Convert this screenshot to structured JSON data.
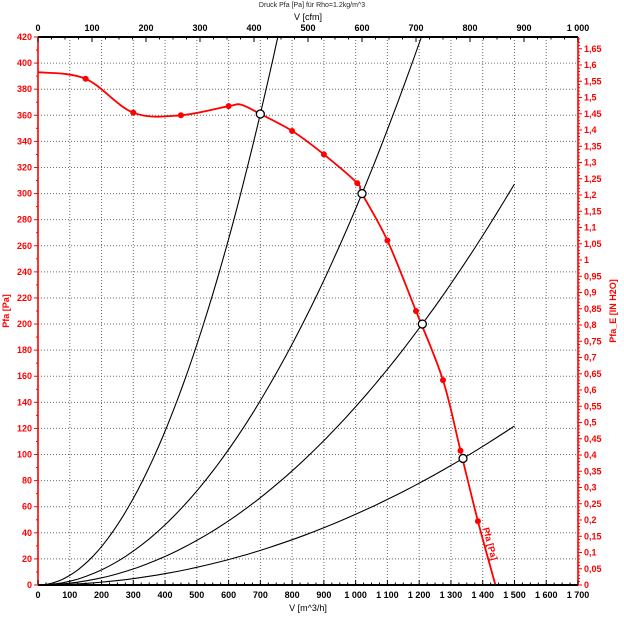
{
  "header": {
    "title": "Druck Pfa [Pa] für Rho=1.2kg/m^3"
  },
  "chart_data": {
    "type": "line",
    "title": "Druck Pfa [Pa] für Rho=1.2kg/m^3",
    "colors": {
      "curve": "#ff0000",
      "system_curve": "#000000",
      "grid": "#6b6b6b",
      "axis_black": "#000000",
      "axis_red": "#ff0000",
      "background": "#ffffff",
      "op_fill": "#ffffff"
    },
    "axes": {
      "bottom": {
        "label": "V [m^3/h]",
        "min": 0,
        "max": 1700,
        "major": 100,
        "minor": 25,
        "tick_labels": [
          "0",
          "100",
          "200",
          "300",
          "400",
          "500",
          "600",
          "700",
          "800",
          "900",
          "1 000",
          "1 100",
          "1 200",
          "1 300",
          "1 400",
          "1 500",
          "1 600",
          "1 700"
        ]
      },
      "top": {
        "label": "V [cfm]",
        "min": 0,
        "max": 1000,
        "major": 100,
        "minor": 25,
        "tick_labels": [
          "0",
          "100",
          "200",
          "300",
          "400",
          "500",
          "600",
          "700",
          "800",
          "900",
          "1 000"
        ]
      },
      "left": {
        "label": "Pfa [Pa]",
        "min": 0,
        "max": 420,
        "major": 20,
        "minor": 10,
        "tick_labels": [
          "0",
          "20",
          "40",
          "60",
          "80",
          "100",
          "120",
          "140",
          "160",
          "180",
          "200",
          "220",
          "240",
          "260",
          "280",
          "300",
          "320",
          "340",
          "360",
          "380",
          "400",
          "420"
        ]
      },
      "right": {
        "label": "Pfa_E [IN H2O]",
        "min": 0,
        "max": 1.6862,
        "major": 0.05,
        "minor": 0.01,
        "label_max": 1.65,
        "tick_labels": [
          "0",
          "0,05",
          "0,1",
          "0,15",
          "0,2",
          "0,25",
          "0,3",
          "0,35",
          "0,4",
          "0,45",
          "0,5",
          "0,55",
          "0,6",
          "0,65",
          "0,7",
          "0,75",
          "0,8",
          "0,85",
          "0,9",
          "0,95",
          "1",
          "1,05",
          "1,1",
          "1,15",
          "1,2",
          "1,25",
          "1,3",
          "1,35",
          "1,4",
          "1,45",
          "1,5",
          "1,55",
          "1,6",
          "1,65"
        ]
      }
    },
    "fan_curve": {
      "name": "Pfa [Pa]",
      "points": [
        [
          0,
          393
        ],
        [
          150,
          388
        ],
        [
          300,
          362
        ],
        [
          450,
          360
        ],
        [
          600,
          367
        ],
        [
          640,
          368
        ],
        [
          700,
          361
        ],
        [
          800,
          348
        ],
        [
          900,
          330
        ],
        [
          1005,
          308
        ],
        [
          1020,
          300
        ],
        [
          1100,
          264
        ],
        [
          1190,
          210
        ],
        [
          1275,
          157
        ],
        [
          1330,
          103
        ],
        [
          1385,
          49
        ],
        [
          1440,
          0
        ]
      ],
      "markers": [
        [
          150,
          388
        ],
        [
          300,
          362
        ],
        [
          450,
          360
        ],
        [
          600,
          367
        ],
        [
          800,
          348
        ],
        [
          900,
          330
        ],
        [
          1005,
          308
        ],
        [
          1100,
          264
        ],
        [
          1190,
          210
        ],
        [
          1275,
          157
        ],
        [
          1330,
          103
        ],
        [
          1385,
          49
        ]
      ]
    },
    "system_curves": [
      {
        "k": 0.0007367,
        "v_end": 755
      },
      {
        "k": 0.00028835,
        "v_end": 1207
      },
      {
        "k": 0.00013661,
        "v_end": 1500
      },
      {
        "k": 5.4187e-05,
        "v_end": 1500
      }
    ],
    "operating_points": [
      [
        700,
        361
      ],
      [
        1020,
        300
      ],
      [
        1210,
        200
      ],
      [
        1338,
        97
      ]
    ],
    "curve_label": {
      "text": "Pfa [Pa]",
      "v": 1414,
      "p": 31,
      "angle": 75
    }
  }
}
